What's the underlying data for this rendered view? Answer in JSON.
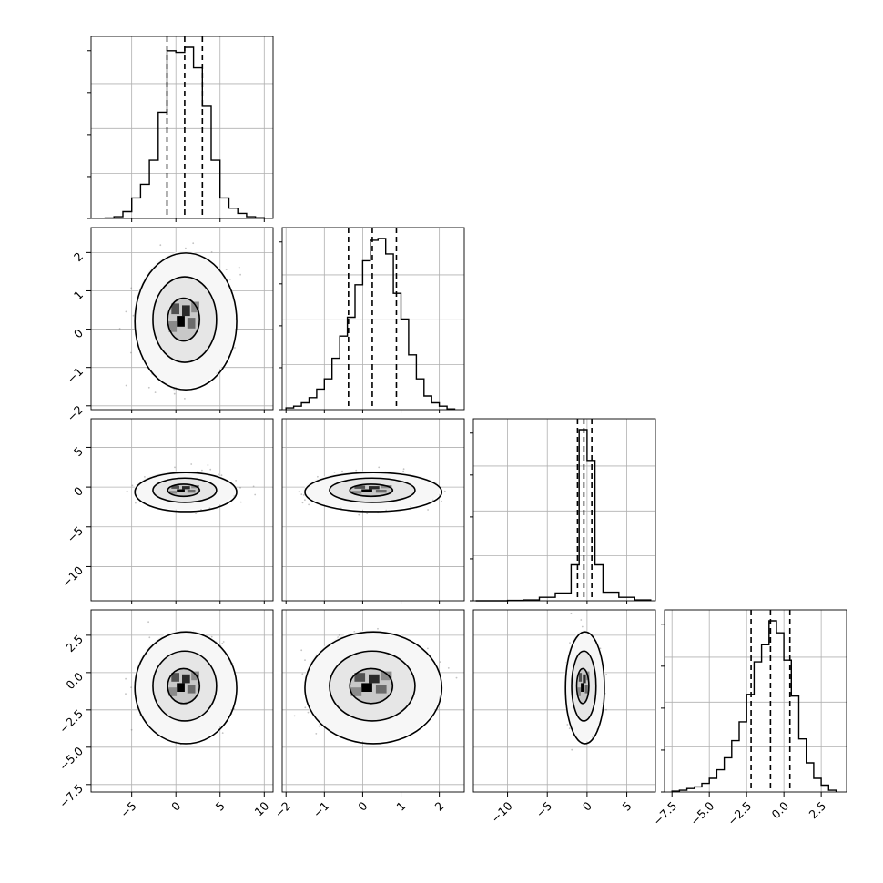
{
  "figure": {
    "type": "corner-plot",
    "parameters": [
      {
        "ticks": [
          -5,
          0,
          5,
          10
        ],
        "tick_labels": [
          "−5",
          "0",
          "5",
          "10"
        ],
        "range": [
          -9.6,
          11.0
        ]
      },
      {
        "ticks": [
          -2,
          -1,
          0,
          1,
          2
        ],
        "tick_labels": [
          "−2",
          "−1",
          "0",
          "1",
          "2"
        ],
        "range": [
          -2.1,
          2.65
        ]
      },
      {
        "ticks": [
          -10,
          -5,
          0,
          5
        ],
        "tick_labels": [
          "−10",
          "−5",
          "0",
          "5"
        ],
        "range": [
          -14.3,
          8.6
        ]
      },
      {
        "ticks": [
          -7.5,
          -5.0,
          -2.5,
          0.0,
          2.5
        ],
        "tick_labels": [
          "−7.5",
          "−5.0",
          "−2.5",
          "0.0",
          "2.5"
        ],
        "range": [
          -8.0,
          4.2
        ]
      }
    ],
    "grid": true,
    "colors": {
      "line": "#000000",
      "grid": "#b0b0b0",
      "points": "#7a7a7a"
    }
  },
  "chart_data": [
    {
      "type": "histogram",
      "parameter": 0,
      "quantiles": [
        -1.0,
        1.0,
        3.0
      ],
      "bins": [
        -8.0,
        -7.0,
        -6.0,
        -5.0,
        -4.0,
        -3.0,
        -2.0,
        -1.0,
        0.0,
        1.0,
        2.0,
        3.0,
        4.0,
        5.0,
        6.0,
        7.0,
        8.0,
        9.0,
        10.0
      ],
      "counts": [
        0.003,
        0.01,
        0.04,
        0.12,
        0.2,
        0.34,
        0.62,
        0.98,
        0.97,
        1.0,
        0.88,
        0.66,
        0.34,
        0.12,
        0.06,
        0.03,
        0.01,
        0.004
      ]
    },
    {
      "type": "histogram",
      "parameter": 1,
      "quantiles": [
        -0.37,
        0.25,
        0.88
      ],
      "bins": [
        -2.0,
        -1.8,
        -1.6,
        -1.4,
        -1.2,
        -1.0,
        -0.8,
        -0.6,
        -0.4,
        -0.2,
        0.0,
        0.2,
        0.4,
        0.6,
        0.8,
        1.0,
        1.2,
        1.4,
        1.6,
        1.8,
        2.0,
        2.2,
        2.4
      ],
      "counts": [
        0.01,
        0.02,
        0.04,
        0.07,
        0.12,
        0.18,
        0.3,
        0.43,
        0.54,
        0.73,
        0.87,
        0.99,
        1.0,
        0.91,
        0.68,
        0.53,
        0.32,
        0.18,
        0.08,
        0.04,
        0.02,
        0.004
      ]
    },
    {
      "type": "histogram",
      "parameter": 2,
      "quantiles": [
        -1.2,
        -0.4,
        0.6
      ],
      "bins": [
        -14.0,
        -12.0,
        -10.0,
        -8.0,
        -6.0,
        -4.0,
        -2.0,
        -1.0,
        0.0,
        1.0,
        2.0,
        4.0,
        6.0,
        8.0
      ],
      "counts": [
        0.0,
        0.0,
        0.002,
        0.005,
        0.02,
        0.045,
        0.21,
        1.0,
        0.82,
        0.21,
        0.05,
        0.02,
        0.005
      ]
    },
    {
      "type": "histogram",
      "parameter": 3,
      "quantiles": [
        -2.2,
        -0.9,
        0.4
      ],
      "bins": [
        -7.5,
        -7.0,
        -6.5,
        -6.0,
        -5.5,
        -5.0,
        -4.5,
        -4.0,
        -3.5,
        -3.0,
        -2.5,
        -2.0,
        -1.5,
        -1.0,
        -0.5,
        0.0,
        0.5,
        1.0,
        1.5,
        2.0,
        2.5,
        3.0,
        3.5
      ],
      "counts": [
        0.005,
        0.01,
        0.02,
        0.03,
        0.05,
        0.08,
        0.13,
        0.2,
        0.3,
        0.41,
        0.57,
        0.76,
        0.86,
        1.0,
        0.93,
        0.77,
        0.56,
        0.31,
        0.17,
        0.08,
        0.04,
        0.01
      ]
    },
    {
      "type": "2d-density",
      "x": 0,
      "y": 1,
      "center": [
        1.0,
        0.25
      ],
      "std": [
        2.0,
        0.62
      ]
    },
    {
      "type": "2d-density",
      "x": 0,
      "y": 2,
      "center": [
        1.0,
        -0.4
      ],
      "std": [
        2.0,
        0.85
      ]
    },
    {
      "type": "2d-density",
      "x": 1,
      "y": 2,
      "center": [
        0.25,
        -0.4
      ],
      "std": [
        0.62,
        0.85
      ]
    },
    {
      "type": "2d-density",
      "x": 0,
      "y": 3,
      "center": [
        1.0,
        -0.9
      ],
      "std": [
        2.0,
        1.3
      ]
    },
    {
      "type": "2d-density",
      "x": 1,
      "y": 3,
      "center": [
        0.25,
        -0.9
      ],
      "std": [
        0.62,
        1.3
      ]
    },
    {
      "type": "2d-density",
      "x": 2,
      "y": 3,
      "center": [
        -0.4,
        -0.9
      ],
      "std": [
        0.85,
        1.3
      ]
    }
  ]
}
